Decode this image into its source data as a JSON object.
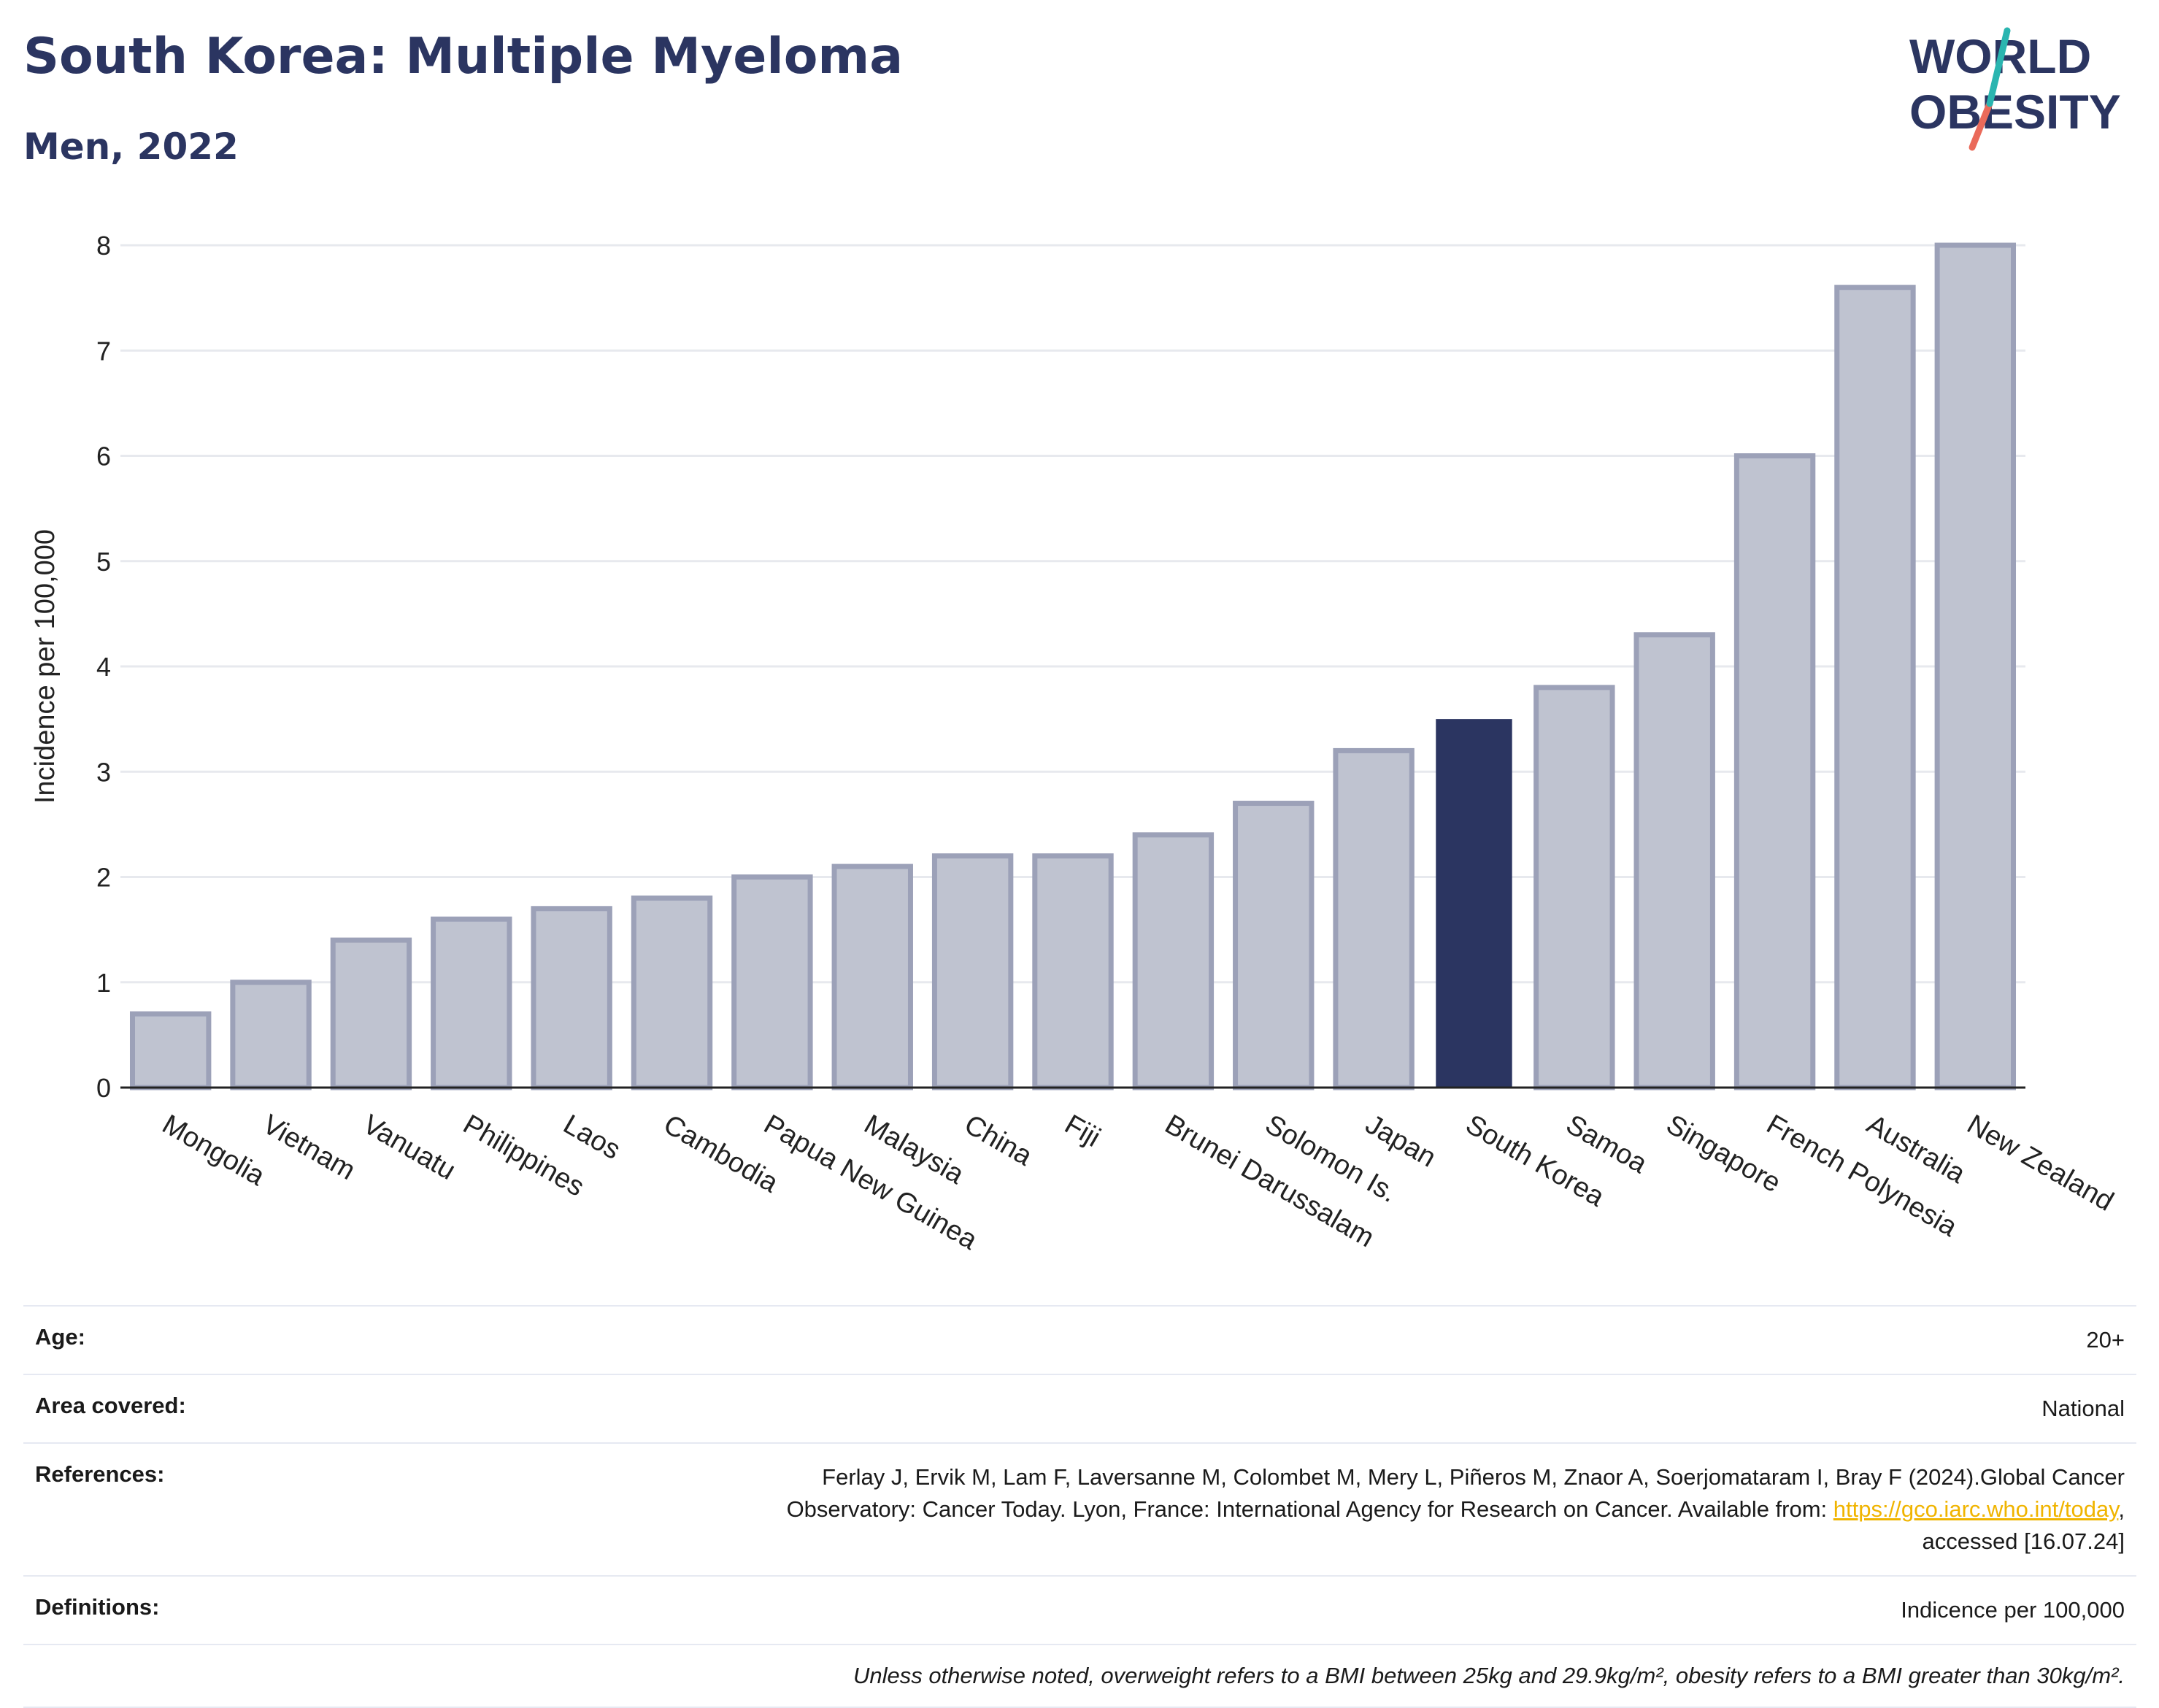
{
  "header": {
    "title": "South Korea: Multiple Myeloma",
    "subtitle": "Men, 2022"
  },
  "logo": {
    "line1": "WORLD",
    "line2": "OBESITY",
    "colors": {
      "text": "#2b3561",
      "slash_teal": "#2ab5b0",
      "slash_coral": "#ea6a5a"
    }
  },
  "chart_data": {
    "type": "bar",
    "title": "South Korea: Multiple Myeloma",
    "subtitle": "Men, 2022",
    "ylabel": "Incidence per 100,000",
    "xlabel": "",
    "ylim": [
      0,
      8
    ],
    "yticks": [
      0,
      1,
      2,
      3,
      4,
      5,
      6,
      7,
      8
    ],
    "grid": true,
    "highlight": "South Korea",
    "colors": {
      "bar": "#bfc3d0",
      "bar_edge": "#9ca1b8",
      "highlight": "#2b3561",
      "grid": "#e7e9ee"
    },
    "categories": [
      "Mongolia",
      "Vietnam",
      "Vanuatu",
      "Philippines",
      "Laos",
      "Cambodia",
      "Papua New Guinea",
      "Malaysia",
      "China",
      "Fiji",
      "Brunei Darussalam",
      "Solomon Is.",
      "Japan",
      "South Korea",
      "Samoa",
      "Singapore",
      "French Polynesia",
      "Australia",
      "New Zealand"
    ],
    "values": [
      0.7,
      1.0,
      1.4,
      1.6,
      1.7,
      1.8,
      2.0,
      2.1,
      2.2,
      2.2,
      2.4,
      2.7,
      3.2,
      3.5,
      3.8,
      4.3,
      6.0,
      7.6,
      8.0
    ]
  },
  "info": {
    "age_label": "Age:",
    "age_value": "20+",
    "area_label": "Area covered:",
    "area_value": "National",
    "references_label": "References:",
    "references_line1": "Ferlay J, Ervik M, Lam F, Laversanne M, Colombet M, Mery L, Piñeros M, Znaor A, Soerjomataram I, Bray F (2024).Global Cancer",
    "references_line2_pre": "Observatory: Cancer Today. Lyon, France: International Agency for Research on Cancer. Available from: ",
    "references_link": "https://gco.iarc.who.int/today",
    "references_line2_post": ",",
    "references_line3": "accessed [16.07.24]",
    "definitions_label": "Definitions:",
    "definitions_value": "Indicence per 100,000",
    "note": "Unless otherwise noted, overweight refers to a BMI between 25kg and 29.9kg/m², obesity refers to a BMI greater than 30kg/m²."
  }
}
